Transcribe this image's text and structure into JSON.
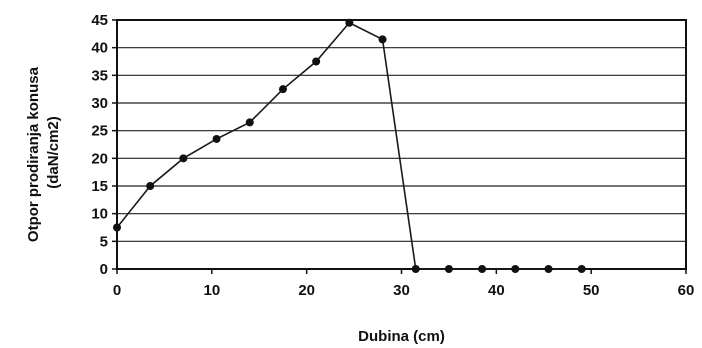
{
  "chart_data": {
    "type": "line",
    "title": "",
    "xlabel": "Dubina (cm)",
    "ylabel_lines": [
      "Otpor prodiranja konusa",
      "(daN/cm2)"
    ],
    "xlim": [
      0,
      60
    ],
    "ylim": [
      0,
      45
    ],
    "xticks": [
      0,
      10,
      20,
      30,
      40,
      50,
      60
    ],
    "yticks": [
      0,
      5,
      10,
      15,
      20,
      25,
      30,
      35,
      40,
      45
    ],
    "grid": "horizontal",
    "legend": "none",
    "series": [
      {
        "x": [
          0,
          3.5,
          7,
          10.5,
          14,
          17.5,
          21,
          24.5,
          28,
          31.5,
          35,
          38.5,
          42,
          45.5,
          49
        ],
        "y": [
          7.5,
          15,
          20,
          23.5,
          26.5,
          32.5,
          37.5,
          44.5,
          41.5,
          0,
          0,
          0,
          0,
          0,
          0
        ]
      }
    ],
    "colors": {
      "line": "#1a1a1a",
      "marker": "#111111",
      "grid": "#222222",
      "frame": "#111111"
    }
  }
}
